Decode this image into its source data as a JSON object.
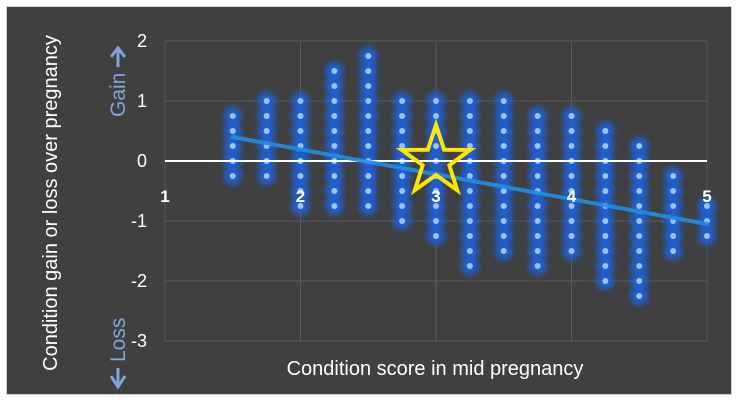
{
  "chart_data": {
    "type": "scatter",
    "title": "",
    "xlabel": "Condition score in mid pregnancy",
    "ylabel": "Condition gain or loss over pregnancy",
    "gain_label": "Gain",
    "loss_label": "Loss",
    "xlim": [
      1,
      5
    ],
    "ylim": [
      -3,
      2
    ],
    "x_ticks": [
      {
        "value": 1,
        "label": "1"
      },
      {
        "value": 2,
        "label": "2"
      },
      {
        "value": 3,
        "label": "3"
      },
      {
        "value": 4,
        "label": "4"
      },
      {
        "value": 5,
        "label": "5"
      }
    ],
    "y_ticks": [
      {
        "value": 2,
        "label": "2"
      },
      {
        "value": 1,
        "label": "1"
      },
      {
        "value": 0,
        "label": "0"
      },
      {
        "value": -1,
        "label": "-1"
      },
      {
        "value": -2,
        "label": "-2"
      },
      {
        "value": -3,
        "label": "-3"
      }
    ],
    "grid": true,
    "point_color": "#9cc3f0",
    "glow_color": "#1f5fd6",
    "trend_color": "#1f8fe0",
    "zero_line_color": "#ffffff",
    "star_color": "#ffe600",
    "columns": [
      {
        "x": 1.5,
        "y_min": -0.25,
        "y_max": 0.75
      },
      {
        "x": 1.75,
        "y_min": -0.25,
        "y_max": 1.0
      },
      {
        "x": 2.0,
        "y_min": -0.75,
        "y_max": 1.0
      },
      {
        "x": 2.25,
        "y_min": -0.75,
        "y_max": 1.5
      },
      {
        "x": 2.5,
        "y_min": -0.75,
        "y_max": 1.75
      },
      {
        "x": 2.75,
        "y_min": -1.0,
        "y_max": 1.0
      },
      {
        "x": 3.0,
        "y_min": -1.25,
        "y_max": 1.0
      },
      {
        "x": 3.25,
        "y_min": -1.75,
        "y_max": 1.0
      },
      {
        "x": 3.5,
        "y_min": -1.5,
        "y_max": 1.0
      },
      {
        "x": 3.75,
        "y_min": -1.75,
        "y_max": 0.75
      },
      {
        "x": 4.0,
        "y_min": -1.5,
        "y_max": 0.75
      },
      {
        "x": 4.25,
        "y_min": -2.0,
        "y_max": 0.5
      },
      {
        "x": 4.5,
        "y_min": -2.25,
        "y_max": 0.25
      },
      {
        "x": 4.75,
        "y_min": -1.5,
        "y_max": -0.25
      },
      {
        "x": 5.0,
        "y_min": -1.25,
        "y_max": -0.75
      }
    ],
    "point_step": 0.25,
    "trend_line": {
      "x": [
        1.5,
        5.0
      ],
      "y": [
        0.4,
        -1.05
      ]
    },
    "highlight_point": {
      "x": 3.0,
      "y": 0.0
    }
  }
}
